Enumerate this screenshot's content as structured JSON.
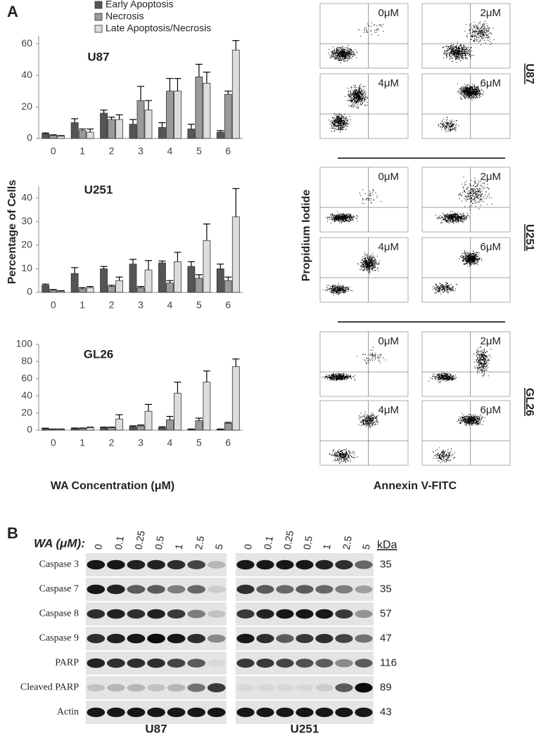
{
  "panel_a": {
    "label": "A",
    "ylabel": "Percentage of Cells",
    "xlabel": "WA Concentration (μM)"
  },
  "chart_data": [
    {
      "type": "bar",
      "title": "U87",
      "categories": [
        "0",
        "1",
        "2",
        "3",
        "4",
        "5",
        "6"
      ],
      "legend": true,
      "ylim": [
        0,
        65
      ],
      "yticks": [
        0,
        20,
        40,
        60
      ],
      "series": [
        {
          "name": "Early Apoptosis",
          "color": "#555555",
          "values": [
            3,
            10,
            16,
            9,
            7,
            6,
            4
          ],
          "errors": [
            0.5,
            2.5,
            2,
            3,
            3,
            3,
            1
          ]
        },
        {
          "name": "Necrosis",
          "color": "#9a9a9a",
          "values": [
            2,
            5,
            12,
            24,
            30,
            39,
            28
          ],
          "errors": [
            0.3,
            1,
            1.5,
            9,
            8,
            8,
            2
          ]
        },
        {
          "name": "Late Apoptosis/Necrosis",
          "color": "#dddddd",
          "values": [
            1.5,
            4,
            12,
            18,
            30,
            35,
            56
          ],
          "errors": [
            0.3,
            2,
            3,
            6,
            8,
            7,
            6
          ]
        }
      ]
    },
    {
      "type": "bar",
      "title": "U251",
      "categories": [
        "0",
        "1",
        "2",
        "3",
        "4",
        "5",
        "6"
      ],
      "ylim": [
        0,
        45
      ],
      "yticks": [
        0,
        10,
        20,
        30,
        40
      ],
      "series": [
        {
          "color": "#555555",
          "values": [
            3,
            8,
            10,
            12,
            12.5,
            11,
            10
          ],
          "errors": [
            0.5,
            2.5,
            1,
            2,
            0.8,
            2,
            2
          ]
        },
        {
          "color": "#9a9a9a",
          "values": [
            1,
            1.5,
            2.5,
            2,
            4,
            6,
            5
          ],
          "errors": [
            0.2,
            0.5,
            0.5,
            0.5,
            1,
            1.5,
            1.5
          ]
        },
        {
          "color": "#dddddd",
          "values": [
            0.5,
            2,
            5,
            9.5,
            13,
            22,
            32
          ],
          "errors": [
            0.2,
            0.5,
            1.5,
            4,
            4,
            7,
            12
          ]
        }
      ]
    },
    {
      "type": "bar",
      "title": "GL26",
      "categories": [
        "0",
        "1",
        "2",
        "3",
        "4",
        "5",
        "6"
      ],
      "ylim": [
        0,
        100
      ],
      "yticks": [
        0,
        20,
        40,
        60,
        80,
        100
      ],
      "series": [
        {
          "color": "#555555",
          "values": [
            2,
            2,
            3,
            4,
            3,
            1,
            1
          ],
          "errors": [
            0.3,
            0.5,
            0.5,
            1,
            1,
            0.3,
            0.3
          ]
        },
        {
          "color": "#9a9a9a",
          "values": [
            1,
            2,
            3,
            5,
            12,
            11,
            8
          ],
          "errors": [
            0.3,
            0.5,
            0.5,
            1,
            4,
            3,
            1
          ]
        },
        {
          "color": "#dddddd",
          "values": [
            1,
            3,
            13,
            22,
            43,
            56,
            74
          ],
          "errors": [
            0.3,
            0.5,
            5,
            8,
            13,
            13,
            9
          ]
        }
      ]
    }
  ],
  "flow_cytometry": {
    "ylabel": "Propidium Iodide",
    "xlabel": "Annexin V-FITC",
    "groups": [
      {
        "label": "U87",
        "panels": [
          "0μM",
          "2μM",
          "4μM",
          "6μM"
        ]
      },
      {
        "label": "U251",
        "panels": [
          "0μM",
          "2μM",
          "4μM",
          "6μM"
        ]
      },
      {
        "label": "GL26",
        "panels": [
          "0μM",
          "2μM",
          "4μM",
          "6μM"
        ]
      }
    ]
  },
  "western_blot": {
    "label": "B",
    "treatment_label": "WA (μM):",
    "unit_label": "kDa",
    "doses": [
      "0",
      "0.1",
      "0.25",
      "0.5",
      "1",
      "2.5",
      "5"
    ],
    "cell_lines": [
      "U87",
      "U251"
    ],
    "rows": [
      {
        "name": "Caspase 3",
        "kda": 35
      },
      {
        "name": "Caspase 7",
        "kda": 35
      },
      {
        "name": "Caspase 8",
        "kda": 57
      },
      {
        "name": "Caspase 9",
        "kda": 47
      },
      {
        "name": "PARP",
        "kda": 116
      },
      {
        "name": "Cleaved PARP",
        "kda": 89
      },
      {
        "name": "Actin",
        "kda": 43
      }
    ]
  }
}
